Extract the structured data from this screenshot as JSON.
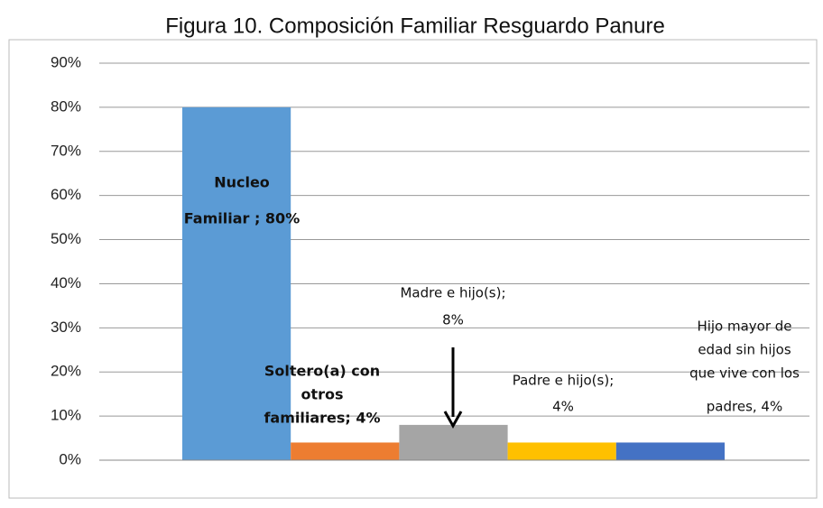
{
  "chart_data": {
    "type": "bar",
    "title": "Figura 10. Composición Familiar Resguardo Panure",
    "categories": [
      null,
      null,
      null,
      null,
      null
    ],
    "values": [
      80,
      4,
      8,
      4,
      4
    ],
    "value_labels": [
      [
        "Nucleo",
        "Familiar ; 80%"
      ],
      [
        "Soltero(a) con",
        "otros",
        "familiares; 4%"
      ],
      [
        "Madre e hijo(s);",
        "8%"
      ],
      [
        "Padre e hijo(s);",
        "4%"
      ],
      [
        "Hijo mayor de",
        "edad sin hijos",
        "que vive con los",
        "padres, 4%"
      ]
    ],
    "colors": [
      "#5b9bd5",
      "#ed7d31",
      "#a5a5a5",
      "#ffc000",
      "#4472c4"
    ],
    "ylim": [
      0,
      90
    ],
    "yticks": [
      {
        "value": 0,
        "label": "0%"
      },
      {
        "value": 10,
        "label": "10%"
      },
      {
        "value": 20,
        "label": "20%"
      },
      {
        "value": 30,
        "label": "30%"
      },
      {
        "value": 40,
        "label": "40%"
      },
      {
        "value": 50,
        "label": "50%"
      },
      {
        "value": 60,
        "label": "60%"
      },
      {
        "value": 70,
        "label": "70%"
      },
      {
        "value": 80,
        "label": "80%"
      },
      {
        "value": 90,
        "label": "90%"
      }
    ],
    "grid": true
  }
}
